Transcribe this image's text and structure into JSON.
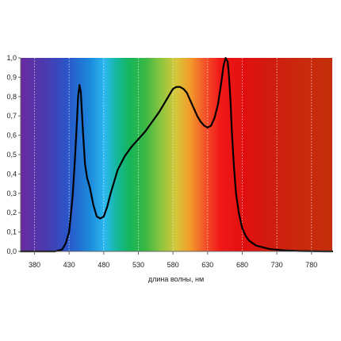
{
  "chart_data": {
    "type": "line",
    "title": "",
    "xlabel": "длина волны, нм",
    "ylabel": "",
    "xlim": [
      360,
      810
    ],
    "ylim": [
      0,
      1
    ],
    "grid": "vertical dotted lines at x ticks",
    "background": "visible spectrum gradient (violet to deep red)",
    "x_ticks": [
      "380",
      "430",
      "480",
      "530",
      "580",
      "630",
      "680",
      "730",
      "780"
    ],
    "y_ticks": [
      "0,0",
      "0,1",
      "0,2",
      "0,3",
      "0,4",
      "0,5",
      "0,6",
      "0,7",
      "0,8",
      "0,9",
      "1,0"
    ],
    "series": [
      {
        "color": "#000000",
        "x": [
          360,
          400,
          410,
          420,
          425,
          430,
          435,
          438,
          441,
          443,
          445,
          447,
          450,
          453,
          456,
          460,
          465,
          470,
          475,
          480,
          485,
          490,
          500,
          510,
          520,
          530,
          540,
          550,
          560,
          570,
          575,
          580,
          585,
          590,
          595,
          600,
          605,
          610,
          615,
          620,
          625,
          630,
          635,
          640,
          645,
          650,
          653,
          656,
          659,
          661,
          663,
          665,
          668,
          671,
          675,
          680,
          685,
          690,
          700,
          720,
          740,
          760,
          780,
          800,
          810
        ],
        "y": [
          0.0,
          0.0,
          0.0,
          0.01,
          0.04,
          0.1,
          0.28,
          0.45,
          0.65,
          0.8,
          0.86,
          0.82,
          0.62,
          0.45,
          0.38,
          0.33,
          0.24,
          0.18,
          0.17,
          0.18,
          0.23,
          0.3,
          0.42,
          0.49,
          0.54,
          0.58,
          0.62,
          0.67,
          0.72,
          0.78,
          0.81,
          0.84,
          0.85,
          0.85,
          0.84,
          0.82,
          0.78,
          0.74,
          0.7,
          0.67,
          0.65,
          0.64,
          0.65,
          0.69,
          0.76,
          0.88,
          0.96,
          1.0,
          0.98,
          0.9,
          0.78,
          0.62,
          0.44,
          0.3,
          0.2,
          0.12,
          0.08,
          0.055,
          0.03,
          0.012,
          0.005,
          0.002,
          0.001,
          0.0,
          0.0
        ]
      }
    ]
  }
}
